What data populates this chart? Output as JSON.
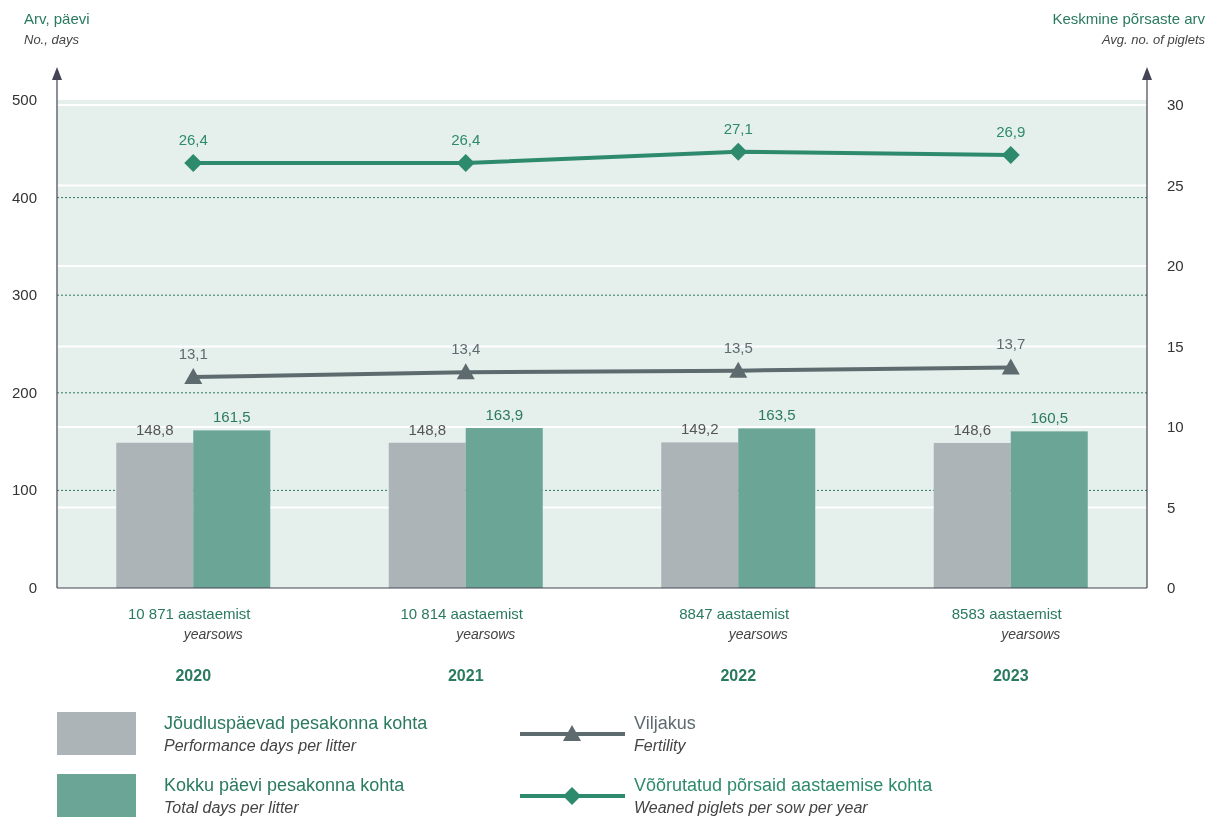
{
  "chart_data": {
    "type": "bar",
    "ylabel": "Arv, päevi\nNo., days",
    "y2label": "Keskmine põrsaste arv\nAvg. no. of piglets",
    "categories": [
      "2020",
      "2021",
      "2022",
      "2023"
    ],
    "series": [
      {
        "name": "Jõudluspäevad pesakonna kohta\nPerformance days per litter",
        "color": "#adb4b7",
        "values": [
          148.8,
          148.8,
          149.2,
          148.6
        ],
        "value_labels": [
          "148,8",
          "148,8",
          "149,2",
          "148,6"
        ]
      },
      {
        "name": "Kokku päevi pesakonna kohta\nTotal days per litter",
        "color": "#6aa596",
        "values": [
          161.5,
          163.9,
          163.5,
          160.5
        ],
        "value_labels": [
          "161,5",
          "163,9",
          "163,5",
          "160,5"
        ]
      },
      {
        "name": "Viljakus\nFertility",
        "type": "line",
        "axis": "y2",
        "marker": "triangle",
        "color": "#5d6b6e",
        "values": [
          13.1,
          13.4,
          13.5,
          13.7
        ],
        "value_labels": [
          "13,1",
          "13,4",
          "13,5",
          "13,7"
        ]
      },
      {
        "name": "Võõrutatud põrsaid aastaemise kohta\nWeaned piglets per sow per year",
        "type": "line",
        "axis": "y2",
        "marker": "diamond",
        "color": "#2e8a6c",
        "values": [
          26.4,
          26.4,
          27.1,
          26.9
        ],
        "value_labels": [
          "26,4",
          "26,4",
          "27,1",
          "26,9"
        ]
      }
    ],
    "annotations": [
      "10 871  aastaemist\nyearsows",
      "10 814  aastaemist\nyearsows",
      "8847  aastaemist\nyearsows",
      "8583  aastaemist\nyearsows"
    ],
    "ylim": [
      0,
      500
    ],
    "yticks": [
      0,
      100,
      200,
      300,
      400,
      500
    ],
    "y2lim": [
      0,
      30
    ],
    "y2ticks": [
      0,
      5,
      10,
      15,
      20,
      25,
      30
    ],
    "grid": true,
    "legend": "bottom"
  }
}
